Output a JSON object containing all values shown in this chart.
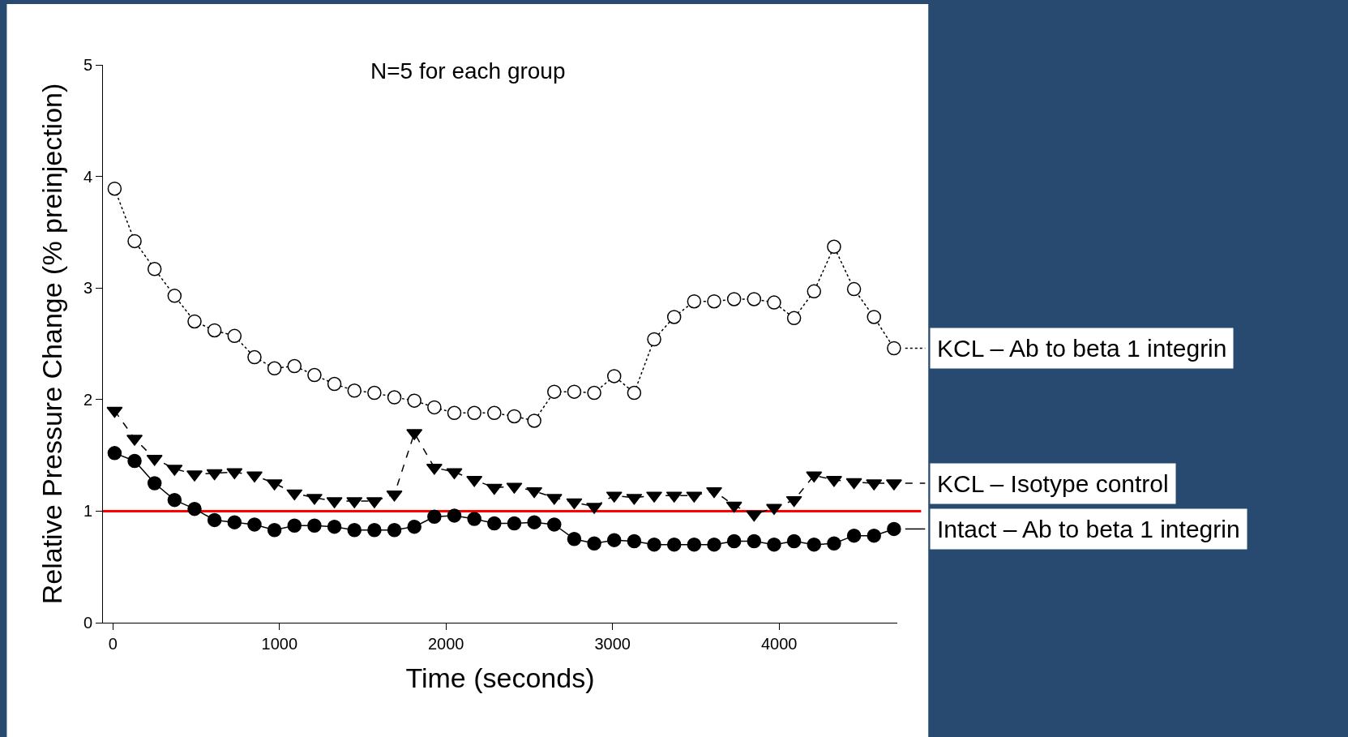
{
  "chart_data": {
    "type": "line",
    "xlabel": "Time (seconds)",
    "ylabel": "Relative Pressure Change (% preinjection)",
    "annotations": [
      "N=5 for each group"
    ],
    "x": [
      10,
      130,
      250,
      370,
      490,
      610,
      730,
      850,
      970,
      1090,
      1210,
      1330,
      1450,
      1570,
      1690,
      1810,
      1930,
      2050,
      2170,
      2290,
      2410,
      2530,
      2650,
      2770,
      2890,
      3010,
      3130,
      3250,
      3370,
      3490,
      3610,
      3730,
      3850,
      3970,
      4090,
      4210,
      4330,
      4450,
      4570,
      4690
    ],
    "series": [
      {
        "name": "KCL – Ab to beta 1 integrin",
        "color": "#ffffff",
        "marker": "circle",
        "line_style": "dotted",
        "values": [
          3.89,
          3.42,
          3.17,
          2.93,
          2.7,
          2.62,
          2.57,
          2.38,
          2.28,
          2.3,
          2.22,
          2.14,
          2.08,
          2.06,
          2.02,
          1.99,
          1.93,
          1.88,
          1.88,
          1.88,
          1.85,
          1.81,
          2.07,
          2.07,
          2.06,
          2.21,
          2.06,
          2.54,
          2.74,
          2.88,
          2.88,
          2.9,
          2.9,
          2.87,
          2.73,
          2.97,
          3.37,
          2.99,
          2.74,
          2.46
        ]
      },
      {
        "name": "KCL – Isotype control",
        "color": "#000000",
        "marker": "triangle",
        "line_style": "dashed",
        "values": [
          1.9,
          1.65,
          1.47,
          1.38,
          1.33,
          1.34,
          1.35,
          1.32,
          1.25,
          1.16,
          1.12,
          1.09,
          1.09,
          1.09,
          1.15,
          1.7,
          1.39,
          1.35,
          1.28,
          1.21,
          1.22,
          1.18,
          1.12,
          1.08,
          1.04,
          1.14,
          1.12,
          1.14,
          1.14,
          1.14,
          1.18,
          1.05,
          0.97,
          1.03,
          1.1,
          1.32,
          1.28,
          1.26,
          1.25,
          1.25
        ]
      },
      {
        "name": "Intact – Ab to beta 1 integrin",
        "color": "#000000",
        "marker": "circle",
        "line_style": "solid",
        "values": [
          1.52,
          1.45,
          1.25,
          1.1,
          1.02,
          0.92,
          0.9,
          0.88,
          0.83,
          0.87,
          0.87,
          0.86,
          0.83,
          0.83,
          0.83,
          0.86,
          0.95,
          0.96,
          0.93,
          0.89,
          0.89,
          0.9,
          0.88,
          0.75,
          0.71,
          0.74,
          0.73,
          0.7,
          0.7,
          0.7,
          0.7,
          0.73,
          0.73,
          0.7,
          0.73,
          0.7,
          0.71,
          0.78,
          0.78,
          0.84
        ]
      }
    ],
    "ref_lines": [
      {
        "axis": "y",
        "value": 1,
        "color": "#ff0000"
      }
    ],
    "xlim": [
      -60,
      4710
    ],
    "xticks": [
      0,
      1000,
      2000,
      3000,
      4000
    ],
    "ylim": [
      0,
      5
    ],
    "yticks": [
      0,
      1,
      2,
      3,
      4,
      5
    ],
    "grid": false,
    "legend": "right"
  }
}
